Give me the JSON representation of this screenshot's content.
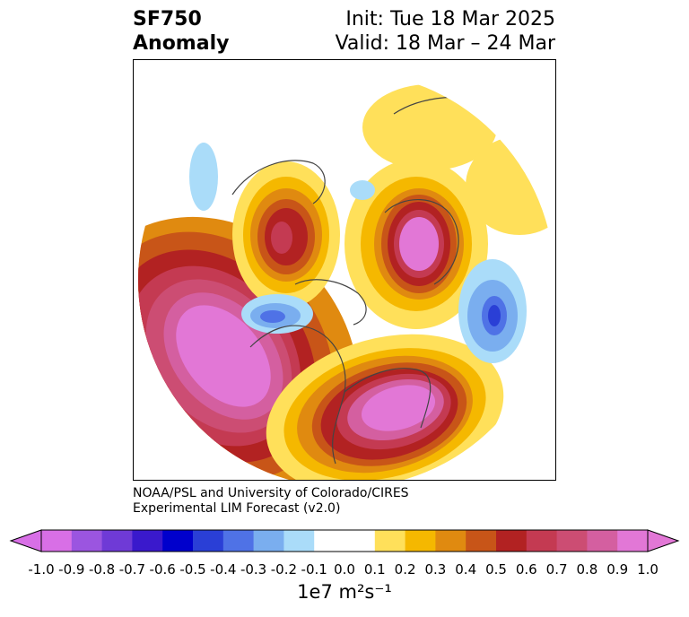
{
  "header": {
    "title_line1": "SF750",
    "title_line2": "Anomaly",
    "init_text": "Init: Tue 18 Mar 2025",
    "valid_text": "Valid: 18 Mar – 24 Mar"
  },
  "credits": {
    "line1": "NOAA/PSL and University of Colorado/CIRES",
    "line2": "Experimental LIM Forecast (v2.0)"
  },
  "colorbar": {
    "tick_labels": [
      "-1.0",
      "-0.9",
      "-0.8",
      "-0.7",
      "-0.6",
      "-0.5",
      "-0.4",
      "-0.3",
      "-0.2",
      "-0.1",
      "0.0",
      "0.1",
      "0.2",
      "0.3",
      "0.4",
      "0.5",
      "0.6",
      "0.7",
      "0.8",
      "0.9",
      "1.0"
    ],
    "unit_label": "1e7 m²s⁻¹",
    "colors": [
      "#d86fe6",
      "#9b55e0",
      "#6f3ad6",
      "#3a19cc",
      "#0000cc",
      "#2a3fd6",
      "#4f72e6",
      "#7aaeef",
      "#aadcf9",
      "#ffffff",
      "#ffffff",
      "#ffe05a",
      "#f5b800",
      "#e08a10",
      "#c85518",
      "#b22222",
      "#c43a52",
      "#cc4d73",
      "#d45fa0",
      "#e277d6"
    ]
  },
  "map": {
    "projection": "north-polar-stereographic",
    "field": "SF750 anomaly",
    "features": [
      {
        "name": "pacific-positive",
        "color": "#e277d6"
      },
      {
        "name": "eastern-us-positive",
        "color": "#e277d6"
      },
      {
        "name": "europe-positive",
        "color": "#e277d6"
      },
      {
        "name": "canada-positive",
        "color": "#b22222"
      },
      {
        "name": "siberia-weak-positive",
        "color": "#ffe05a"
      },
      {
        "name": "central-asia-negative",
        "color": "#4f72e6"
      },
      {
        "name": "alaska-negative",
        "color": "#4f72e6"
      }
    ]
  }
}
